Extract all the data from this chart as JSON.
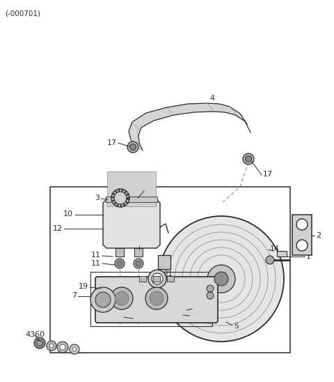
{
  "title": "(-000701)",
  "bg": "#ffffff",
  "lc": "#2a2a2a",
  "gray1": "#c8c8c8",
  "gray2": "#a0a0a0",
  "gray3": "#707070",
  "gray4": "#e8e8e8"
}
